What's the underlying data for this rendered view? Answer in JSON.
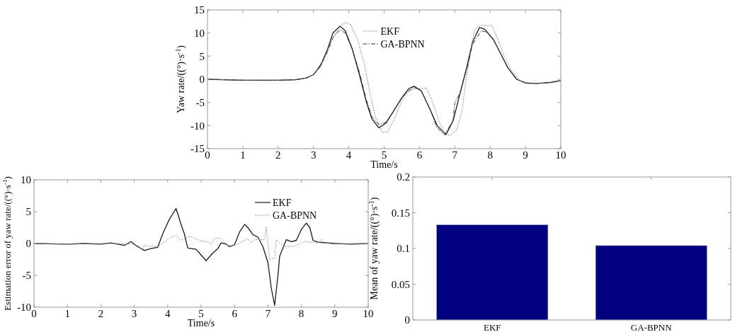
{
  "chart_data": [
    {
      "type": "line",
      "xlabel": "Time/s",
      "ylabel": "Yaw rate/((°)·s$^{-1}$)",
      "xlim": [
        0,
        10
      ],
      "ylim": [
        -15,
        15
      ],
      "xticks": [
        0,
        1,
        2,
        3,
        4,
        5,
        6,
        7,
        8,
        9,
        10
      ],
      "yticks": [
        -15,
        -10,
        -5,
        0,
        5,
        10,
        15
      ],
      "legend": "top",
      "grid": false,
      "series": [
        {
          "color": "#1a1a1a",
          "line_style": "solid",
          "x": [
            0,
            1,
            2,
            2.5,
            2.8,
            3,
            3.2,
            3.4,
            3.55,
            3.75,
            3.9,
            4.1,
            4.3,
            4.5,
            4.65,
            4.85,
            5.05,
            5.3,
            5.5,
            5.7,
            5.85,
            6.05,
            6.3,
            6.5,
            6.75,
            6.95,
            7.15,
            7.35,
            7.5,
            7.7,
            7.85,
            8.1,
            8.3,
            8.5,
            8.75,
            9,
            9.3,
            9.7,
            10
          ],
          "values": [
            0,
            -0.2,
            -0.2,
            -0.1,
            0.3,
            1,
            3,
            6.5,
            10,
            11.5,
            10.5,
            6.5,
            1,
            -5,
            -8.5,
            -10.5,
            -9.5,
            -6.5,
            -4,
            -2,
            -1.5,
            -2.5,
            -6.5,
            -10,
            -12,
            -9,
            -3,
            3,
            8,
            11.2,
            10.8,
            8.5,
            5.5,
            2.5,
            0,
            -0.8,
            -0.9,
            -0.7,
            -0.3
          ]
        },
        {
          "name": "EKF",
          "color": "#8a8a8a",
          "line_style": "dotted",
          "x": [
            0,
            1,
            2,
            2.5,
            2.8,
            3,
            3.3,
            3.55,
            3.75,
            3.9,
            4.05,
            4.25,
            4.45,
            4.6,
            4.75,
            4.95,
            5.1,
            5.3,
            5.5,
            5.7,
            5.9,
            6.2,
            6.35,
            6.55,
            6.7,
            6.85,
            7.05,
            7.2,
            7.3,
            7.45,
            7.55,
            7.7,
            8.05,
            8.2,
            8.4,
            8.6,
            8.85,
            9.1,
            9.5,
            10
          ],
          "values": [
            0,
            -0.2,
            -0.2,
            -0.1,
            0.3,
            1,
            4.5,
            9,
            11.3,
            12.3,
            11.8,
            8.5,
            3,
            -3,
            -8,
            -11.5,
            -11.3,
            -8.5,
            -4.5,
            -2.5,
            -2,
            -1.9,
            -4.5,
            -9,
            -11.5,
            -12.2,
            -11,
            -7,
            -1,
            6,
            10.5,
            11.7,
            11.6,
            9,
            5,
            2,
            -0.3,
            -0.9,
            -0.8,
            -0.2
          ]
        },
        {
          "name": "GA-BPNN",
          "color": "#333333",
          "line_style": "dashed",
          "x": [
            0,
            1,
            2,
            2.5,
            2.8,
            3,
            3.2,
            3.4,
            3.55,
            3.75,
            3.9,
            4.1,
            4.3,
            4.5,
            4.65,
            4.85,
            5.05,
            5.3,
            5.5,
            5.7,
            5.85,
            6.05,
            6.3,
            6.5,
            6.7,
            6.95,
            7,
            7.15,
            7.35,
            7.5,
            7.75,
            7.9,
            8.1,
            8.3,
            8.5,
            8.75,
            9,
            9.3,
            9.7,
            10
          ],
          "values": [
            0,
            -0.2,
            -0.2,
            -0.1,
            0.3,
            1,
            2.8,
            6,
            9,
            10.7,
            10,
            6.5,
            1.5,
            -4.5,
            -8,
            -9.8,
            -9.3,
            -6.5,
            -4,
            -2.5,
            -1.7,
            -2.5,
            -6.5,
            -10.5,
            -12,
            -9,
            -5,
            -3,
            2.5,
            7.5,
            10.5,
            10.2,
            8.5,
            5.5,
            2.5,
            0,
            -0.8,
            -0.9,
            -0.7,
            -0.3
          ]
        }
      ]
    },
    {
      "type": "line",
      "xlabel": "Time/s",
      "ylabel": "Estimation error of yaw rate/((°)·s$^{-1}$)",
      "xlim": [
        0,
        10
      ],
      "ylim": [
        -10,
        10
      ],
      "xticks": [
        0,
        1,
        2,
        3,
        4,
        5,
        6,
        7,
        8,
        9,
        10
      ],
      "yticks": [
        -10,
        -5,
        0,
        5,
        10
      ],
      "legend": "top right",
      "grid": false,
      "series": [
        {
          "name": "EKF",
          "color": "#1a1a1a",
          "line_style": "solid",
          "x": [
            0,
            1,
            1.5,
            2,
            2.3,
            2.7,
            2.9,
            3.05,
            3.3,
            3.5,
            3.7,
            3.85,
            4.05,
            4.25,
            4.4,
            4.5,
            4.6,
            4.85,
            5,
            5.15,
            5.35,
            5.5,
            5.6,
            5.75,
            5.85,
            6,
            6.15,
            6.3,
            6.4,
            6.55,
            6.7,
            6.85,
            7,
            7.1,
            7.2,
            7.3,
            7.35,
            7.55,
            7.7,
            7.85,
            8,
            8.15,
            8.25,
            8.35,
            8.5,
            9,
            9.5,
            10
          ],
          "values": [
            0,
            -0.1,
            0,
            -0.1,
            0.1,
            -0.3,
            0.3,
            -0.3,
            -1.1,
            -0.8,
            -0.6,
            1.5,
            3.8,
            5.5,
            3,
            1.5,
            -0.7,
            -0.9,
            -1.8,
            -2.7,
            -1.5,
            -0.8,
            0.1,
            -0.1,
            -0.5,
            -0.2,
            1.8,
            3,
            2.5,
            1.4,
            1,
            -0.5,
            -3,
            -7,
            -9.7,
            -5,
            -2,
            0.6,
            0.3,
            0.5,
            2.2,
            3.2,
            2.5,
            0.5,
            0.2,
            0,
            -0.1,
            0
          ]
        },
        {
          "name": "GA-BPNN",
          "color": "#999999",
          "line_style": "dotted",
          "x": [
            0,
            1,
            2,
            2.5,
            2.9,
            3.1,
            3.25,
            3.3,
            3.4,
            3.5,
            3.7,
            3.9,
            4.1,
            4.25,
            4.4,
            4.6,
            4.7,
            5,
            5.2,
            5.3,
            5.4,
            5.55,
            5.8,
            6,
            6.3,
            6.4,
            6.5,
            6.6,
            6.9,
            6.95,
            7.05,
            7.2,
            7.25,
            7.35,
            7.5,
            7.8,
            8.1,
            8.5,
            8.6,
            8.7,
            9,
            9.5,
            10
          ],
          "values": [
            0,
            -0.1,
            0,
            0,
            -0.1,
            -0.3,
            -1,
            -0.2,
            -0.5,
            -0.4,
            -0.5,
            0.2,
            1,
            1.2,
            0.5,
            1,
            1.1,
            0.4,
            0.3,
            -0.2,
            0.8,
            0.9,
            -0.3,
            -0.3,
            0.5,
            0.8,
            0.1,
            0.6,
            0.6,
            2.6,
            -2.5,
            -2.3,
            0.6,
            0.1,
            -0.5,
            -0.4,
            0.3,
            0.1,
            0.7,
            0.1,
            -0.1,
            0,
            0
          ]
        }
      ]
    },
    {
      "type": "bar",
      "ylabel": "Mean of yaw rate/((°)·s$^{-1}$)",
      "categories": [
        "EKF",
        "GA-BPNN"
      ],
      "values": [
        0.133,
        0.104
      ],
      "color": "#000080",
      "ylim": [
        0,
        0.2
      ],
      "yticks": [
        0,
        0.05,
        0.1,
        0.15,
        0.2
      ],
      "grid": false
    }
  ]
}
